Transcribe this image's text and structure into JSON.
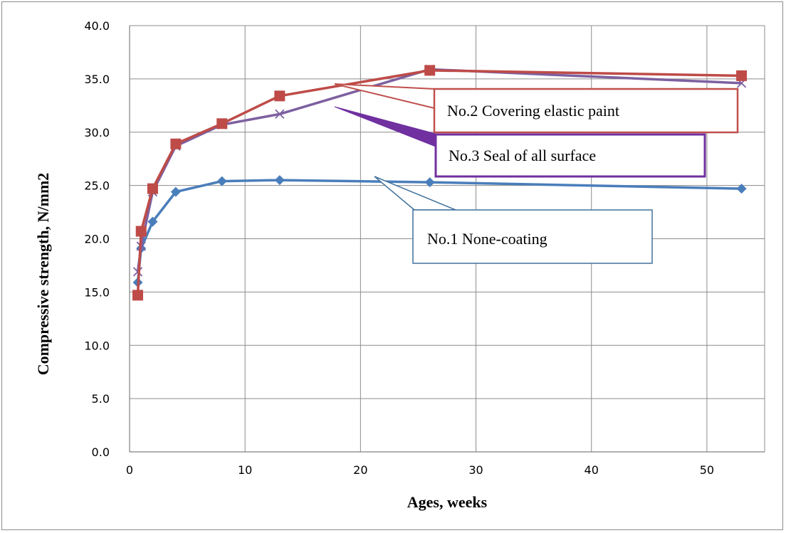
{
  "chart_data": {
    "type": "line",
    "xlabel": "Ages, weeks",
    "ylabel": "Compressive strength, N/mm2",
    "xlim": [
      0,
      55
    ],
    "ylim": [
      0,
      40
    ],
    "x_ticks": [
      0,
      10,
      20,
      30,
      40,
      50
    ],
    "y_ticks": [
      "0.0",
      "5.0",
      "10.0",
      "15.0",
      "20.0",
      "25.0",
      "30.0",
      "35.0",
      "40.0"
    ],
    "grid": true,
    "legend": "none",
    "series": [
      {
        "name": "No.1 None-coating",
        "color": "#4a7ebb",
        "marker": "diamond",
        "x": [
          0.71,
          1,
          2,
          4,
          8,
          13,
          26,
          53
        ],
        "y": [
          15.9,
          19.1,
          21.6,
          24.4,
          25.4,
          25.5,
          25.3,
          24.7
        ]
      },
      {
        "name": "No.2 Covering elastic paint",
        "color": "#be4b48",
        "marker": "square",
        "x": [
          0.71,
          1,
          2,
          4,
          8,
          13,
          26,
          53
        ],
        "y": [
          14.7,
          20.7,
          24.7,
          28.9,
          30.8,
          33.4,
          35.8,
          35.3
        ]
      },
      {
        "name": "No.3 Seal of all surface",
        "color": "#7d60a0",
        "marker": "x",
        "x": [
          0.71,
          1,
          2,
          4,
          8,
          13,
          26,
          53
        ],
        "y": [
          16.9,
          19.3,
          24.4,
          28.7,
          30.7,
          31.7,
          35.9,
          34.6
        ]
      }
    ]
  },
  "callouts": [
    {
      "text": "No.2 Covering elastic paint",
      "color": "#c0504d"
    },
    {
      "text": "No.3 Seal of all surface",
      "color": "#7030a0"
    },
    {
      "text": "No.1 None-coating",
      "color": "#41719c"
    }
  ]
}
